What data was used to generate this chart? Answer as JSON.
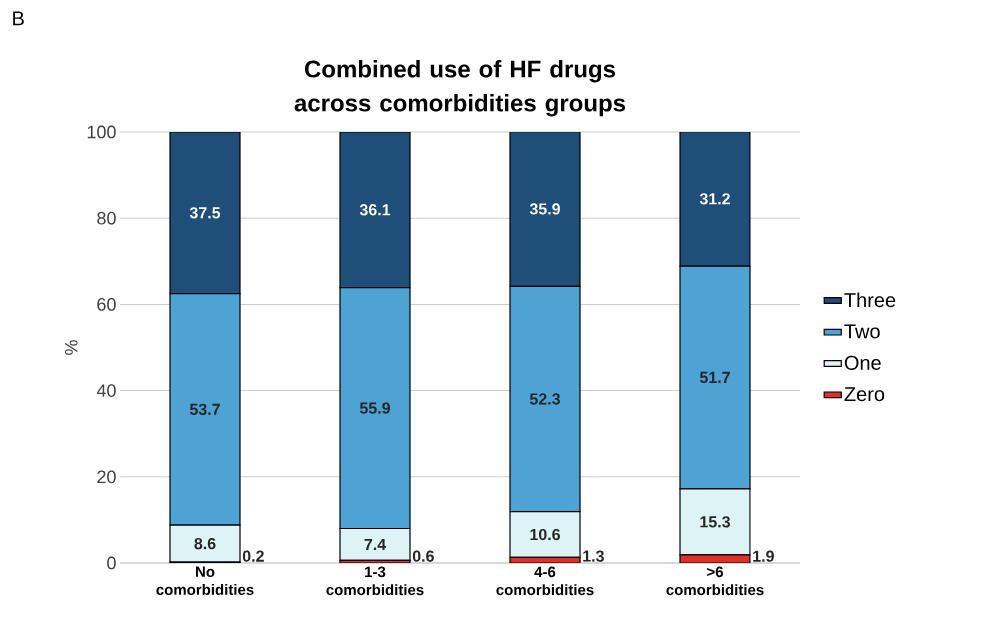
{
  "chart_data": {
    "type": "bar",
    "title": "Combined use of HF drugs across comorbidities groups",
    "ylabel": "%",
    "annotations": [
      "B"
    ],
    "categories": [
      "No comorbidities",
      "1-3 comorbidities",
      "4-6 comorbidities",
      ">6 comorbidities"
    ],
    "stacked": true,
    "ylim": [
      0,
      100
    ],
    "yticks": [
      0,
      20,
      40,
      60,
      80,
      100
    ],
    "grid": "y",
    "legend": "right",
    "data_labels": true,
    "series": [
      {
        "name": "Zero",
        "color": "#e0302a",
        "values": [
          0.2,
          0.6,
          1.3,
          1.9
        ]
      },
      {
        "name": "One",
        "color": "#ddf3f5",
        "values": [
          8.6,
          7.4,
          10.6,
          15.3
        ]
      },
      {
        "name": "Two",
        "color": "#4fa3d4",
        "values": [
          53.7,
          55.9,
          52.3,
          51.7
        ]
      },
      {
        "name": "Three",
        "color": "#1f4e79",
        "values": [
          37.5,
          36.1,
          35.9,
          31.2
        ]
      }
    ]
  }
}
